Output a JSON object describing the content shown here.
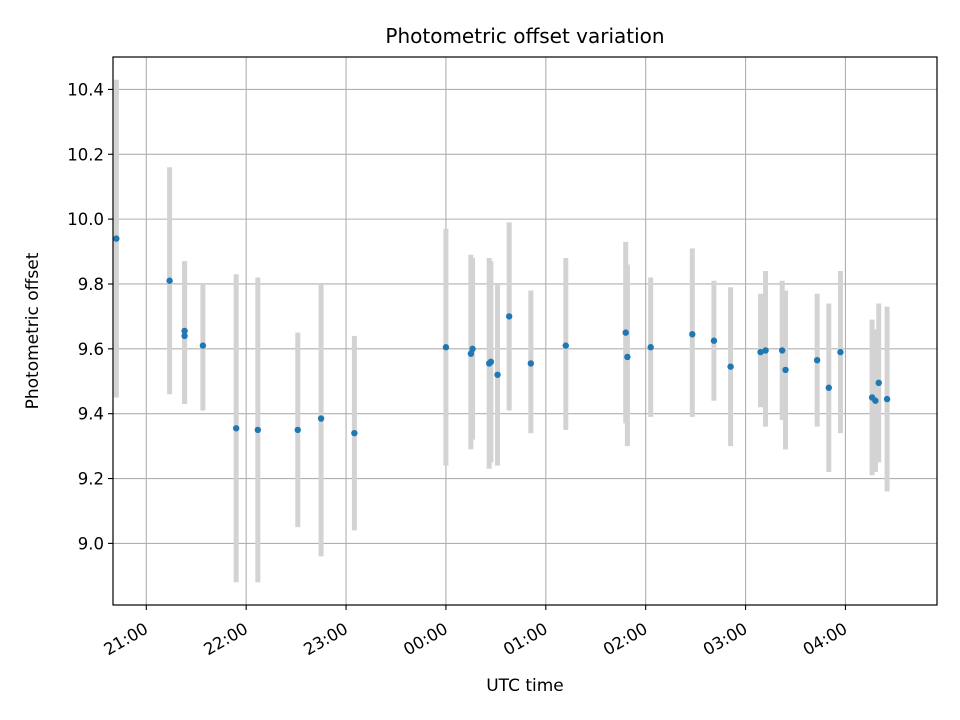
{
  "chart_data": {
    "type": "scatter",
    "title": "Photometric offset variation",
    "xlabel": "UTC time",
    "ylabel": "Photometric offset",
    "xlim": [
      "20:40",
      "04:55"
    ],
    "ylim": [
      8.81,
      10.5
    ],
    "grid": true,
    "x_ticks": [
      "21:00",
      "22:00",
      "23:00",
      "00:00",
      "01:00",
      "02:00",
      "03:00",
      "04:00"
    ],
    "y_ticks": [
      "9.0",
      "9.2",
      "9.4",
      "9.6",
      "9.8",
      "10.0",
      "10.2",
      "10.4"
    ],
    "colors": {
      "point": "#1f77b4",
      "errorbar": "#d3d3d3",
      "grid": "#b0b0b0"
    },
    "points": [
      {
        "x": "20:42",
        "y": 9.94,
        "low": 9.45,
        "high": 10.43
      },
      {
        "x": "21:14",
        "y": 9.81,
        "low": 9.46,
        "high": 10.16
      },
      {
        "x": "21:23",
        "y": 9.655,
        "low": 9.43,
        "high": 9.87
      },
      {
        "x": "21:23",
        "y": 9.64,
        "low": 9.43,
        "high": 9.87
      },
      {
        "x": "21:34",
        "y": 9.61,
        "low": 9.41,
        "high": 9.8
      },
      {
        "x": "21:54",
        "y": 9.355,
        "low": 8.88,
        "high": 9.83
      },
      {
        "x": "22:07",
        "y": 9.35,
        "low": 8.88,
        "high": 9.82
      },
      {
        "x": "22:31",
        "y": 9.35,
        "low": 9.05,
        "high": 9.65
      },
      {
        "x": "22:45",
        "y": 9.385,
        "low": 8.96,
        "high": 9.8
      },
      {
        "x": "23:05",
        "y": 9.34,
        "low": 9.04,
        "high": 9.64
      },
      {
        "x": "00:00",
        "y": 9.605,
        "low": 9.24,
        "high": 9.97
      },
      {
        "x": "00:15",
        "y": 9.585,
        "low": 9.29,
        "high": 9.89
      },
      {
        "x": "00:16",
        "y": 9.6,
        "low": 9.32,
        "high": 9.88
      },
      {
        "x": "00:26",
        "y": 9.555,
        "low": 9.23,
        "high": 9.88
      },
      {
        "x": "00:27",
        "y": 9.56,
        "low": 9.25,
        "high": 9.87
      },
      {
        "x": "00:31",
        "y": 9.52,
        "low": 9.24,
        "high": 9.8
      },
      {
        "x": "00:38",
        "y": 9.7,
        "low": 9.41,
        "high": 9.99
      },
      {
        "x": "00:51",
        "y": 9.555,
        "low": 9.34,
        "high": 9.78
      },
      {
        "x": "01:12",
        "y": 9.61,
        "low": 9.35,
        "high": 9.88
      },
      {
        "x": "01:48",
        "y": 9.65,
        "low": 9.37,
        "high": 9.93
      },
      {
        "x": "01:49",
        "y": 9.575,
        "low": 9.3,
        "high": 9.86
      },
      {
        "x": "02:03",
        "y": 9.605,
        "low": 9.39,
        "high": 9.82
      },
      {
        "x": "02:28",
        "y": 9.645,
        "low": 9.39,
        "high": 9.91
      },
      {
        "x": "02:41",
        "y": 9.625,
        "low": 9.44,
        "high": 9.81
      },
      {
        "x": "02:51",
        "y": 9.545,
        "low": 9.3,
        "high": 9.79
      },
      {
        "x": "03:09",
        "y": 9.59,
        "low": 9.42,
        "high": 9.77
      },
      {
        "x": "03:12",
        "y": 9.595,
        "low": 9.36,
        "high": 9.84
      },
      {
        "x": "03:22",
        "y": 9.595,
        "low": 9.38,
        "high": 9.81
      },
      {
        "x": "03:24",
        "y": 9.535,
        "low": 9.29,
        "high": 9.78
      },
      {
        "x": "03:43",
        "y": 9.565,
        "low": 9.36,
        "high": 9.77
      },
      {
        "x": "03:50",
        "y": 9.48,
        "low": 9.22,
        "high": 9.74
      },
      {
        "x": "03:57",
        "y": 9.59,
        "low": 9.34,
        "high": 9.84
      },
      {
        "x": "04:16",
        "y": 9.45,
        "low": 9.21,
        "high": 9.69
      },
      {
        "x": "04:18",
        "y": 9.44,
        "low": 9.22,
        "high": 9.66
      },
      {
        "x": "04:20",
        "y": 9.495,
        "low": 9.25,
        "high": 9.74
      },
      {
        "x": "04:25",
        "y": 9.445,
        "low": 9.16,
        "high": 9.73
      }
    ]
  }
}
